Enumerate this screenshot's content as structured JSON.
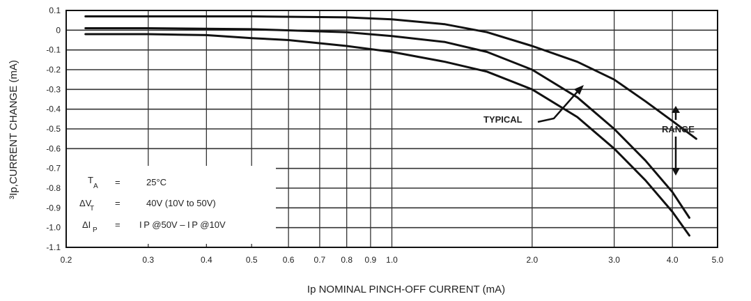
{
  "chart_data": {
    "type": "line",
    "xlabel": "Ip NOMINAL PINCH-OFF CURRENT (mA)",
    "ylabel": "³Ip,CURRENT CHANGE (mA)",
    "xscale": "log",
    "xlim": [
      0.2,
      5.0
    ],
    "ylim": [
      -1.1,
      0.1
    ],
    "grid": true,
    "x_ticks": [
      0.2,
      0.3,
      0.4,
      0.5,
      0.6,
      0.7,
      0.8,
      0.9,
      1.0,
      2.0,
      3.0,
      4.0,
      5.0
    ],
    "x_tick_labels": [
      "0.2",
      "0.3",
      "0.4",
      "0.5",
      "0.6",
      "0.7",
      "0.8",
      "0.9",
      "1.0",
      "2.0",
      "3.0",
      "4.0",
      "5.0"
    ],
    "y_ticks": [
      0.1,
      0,
      -0.1,
      -0.2,
      -0.3,
      -0.4,
      -0.5,
      -0.6,
      -0.7,
      -0.8,
      -0.9,
      -1.0,
      -1.1
    ],
    "y_tick_labels": [
      "0.1",
      "0",
      "-0.1",
      "-0.2",
      "-0.3",
      "-0.4",
      "-0.5",
      "-0.6",
      "-0.7",
      "-0.8",
      "-0.9",
      "-1.0",
      "-1.1"
    ],
    "series": [
      {
        "x": [
          0.22,
          0.3,
          0.5,
          0.8,
          1.0,
          1.3,
          1.6,
          2.0,
          2.5,
          3.0,
          3.5,
          4.0,
          4.5
        ],
        "y": [
          0.07,
          0.07,
          0.07,
          0.065,
          0.055,
          0.03,
          -0.01,
          -0.08,
          -0.16,
          -0.25,
          -0.36,
          -0.46,
          -0.55
        ]
      },
      {
        "x": [
          0.22,
          0.3,
          0.5,
          0.8,
          1.0,
          1.3,
          1.6,
          2.0,
          2.5,
          3.0,
          3.5,
          4.0,
          4.35
        ],
        "y": [
          0.01,
          0.01,
          0.005,
          -0.01,
          -0.03,
          -0.06,
          -0.11,
          -0.2,
          -0.34,
          -0.5,
          -0.66,
          -0.82,
          -0.95
        ]
      },
      {
        "x": [
          0.22,
          0.3,
          0.4,
          0.5,
          0.6,
          0.8,
          1.0,
          1.3,
          1.6,
          2.0,
          2.5,
          3.0,
          3.5,
          4.0,
          4.35
        ],
        "y": [
          -0.02,
          -0.02,
          -0.025,
          -0.04,
          -0.05,
          -0.08,
          -0.11,
          -0.16,
          -0.21,
          -0.3,
          -0.44,
          -0.6,
          -0.76,
          -0.92,
          -1.04
        ]
      }
    ],
    "annotations": {
      "typical": "TYPICAL",
      "range": "RANGE",
      "conditions": [
        {
          "sym": "T",
          "sub": "A",
          "eq": "=",
          "val": "25°C"
        },
        {
          "sym": "ΔV",
          "sub": "T",
          "eq": "=",
          "val": "40V  (10V  to  50V)"
        },
        {
          "sym": "ΔI",
          "sub": "P",
          "eq": "=",
          "val": "I P  @50V  –  I P  @10V"
        }
      ]
    }
  }
}
